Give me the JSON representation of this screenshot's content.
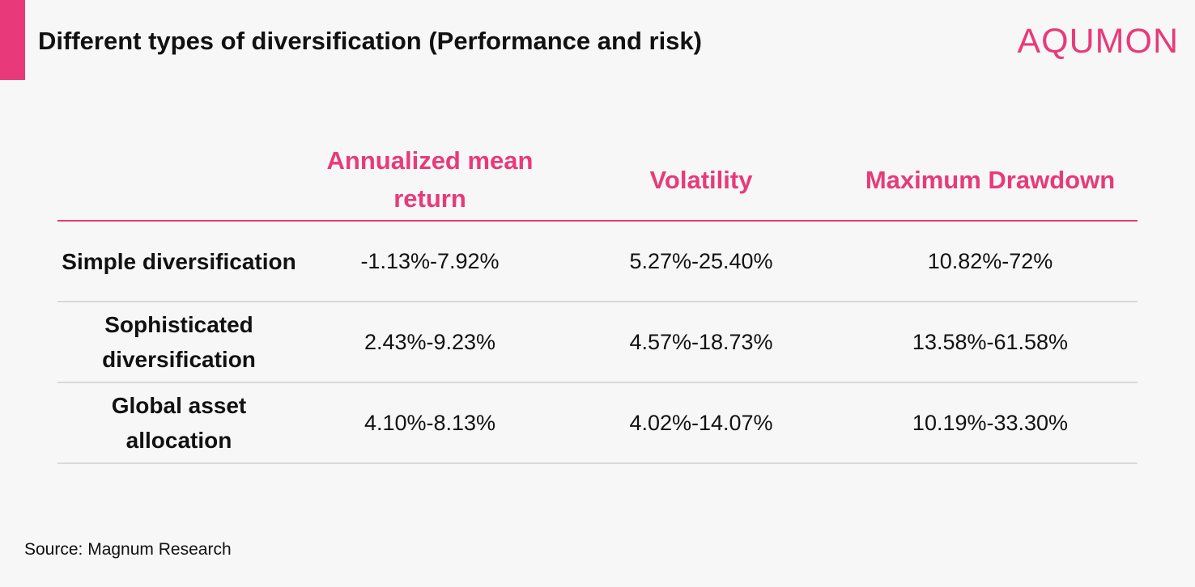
{
  "header": {
    "title": "Different types of diversification (Performance and risk)",
    "logo": "AQUMON",
    "accent_color": "#e83a7a"
  },
  "table": {
    "columns": [
      "",
      "Annualized mean return",
      "Volatility",
      "Maximum Drawdown"
    ],
    "rows": [
      {
        "label": "Simple diversification",
        "values": [
          "-1.13%-7.92%",
          "5.27%-25.40%",
          "10.82%-72%"
        ]
      },
      {
        "label": "Sophisticated diversification",
        "values": [
          "2.43%-9.23%",
          "4.57%-18.73%",
          "13.58%-61.58%"
        ]
      },
      {
        "label": "Global asset allocation",
        "values": [
          "4.10%-8.13%",
          "4.02%-14.07%",
          "10.19%-33.30%"
        ]
      }
    ]
  },
  "footer": {
    "source": "Source: Magnum Research"
  }
}
